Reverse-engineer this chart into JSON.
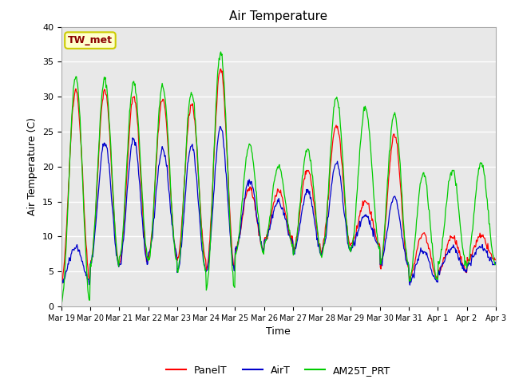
{
  "title": "Air Temperature",
  "xlabel": "Time",
  "ylabel": "Air Temperature (C)",
  "ylim": [
    0,
    40
  ],
  "yticks": [
    0,
    5,
    10,
    15,
    20,
    25,
    30,
    35,
    40
  ],
  "annotation_text": "TW_met",
  "annotation_color": "#8B0000",
  "annotation_bg": "#FFFFCC",
  "annotation_edge": "#CCCC00",
  "outer_bg": "#FFFFFF",
  "plot_bg": "#E8E8E8",
  "grid_color": "#FFFFFF",
  "line_panel_color": "#FF0000",
  "line_air_color": "#0000CC",
  "line_am25_color": "#00CC00",
  "legend_labels": [
    "PanelT",
    "AirT",
    "AM25T_PRT"
  ],
  "xtick_labels": [
    "Mar 19",
    "Mar 20",
    "Mar 21",
    "Mar 22",
    "Mar 23",
    "Mar 24",
    "Mar 25",
    "Mar 26",
    "Mar 27",
    "Mar 28",
    "Mar 29",
    "Mar 30",
    "Mar 31",
    "Apr 1",
    "Apr 2",
    "Apr 3"
  ],
  "figsize": [
    6.4,
    4.8
  ],
  "dpi": 100
}
